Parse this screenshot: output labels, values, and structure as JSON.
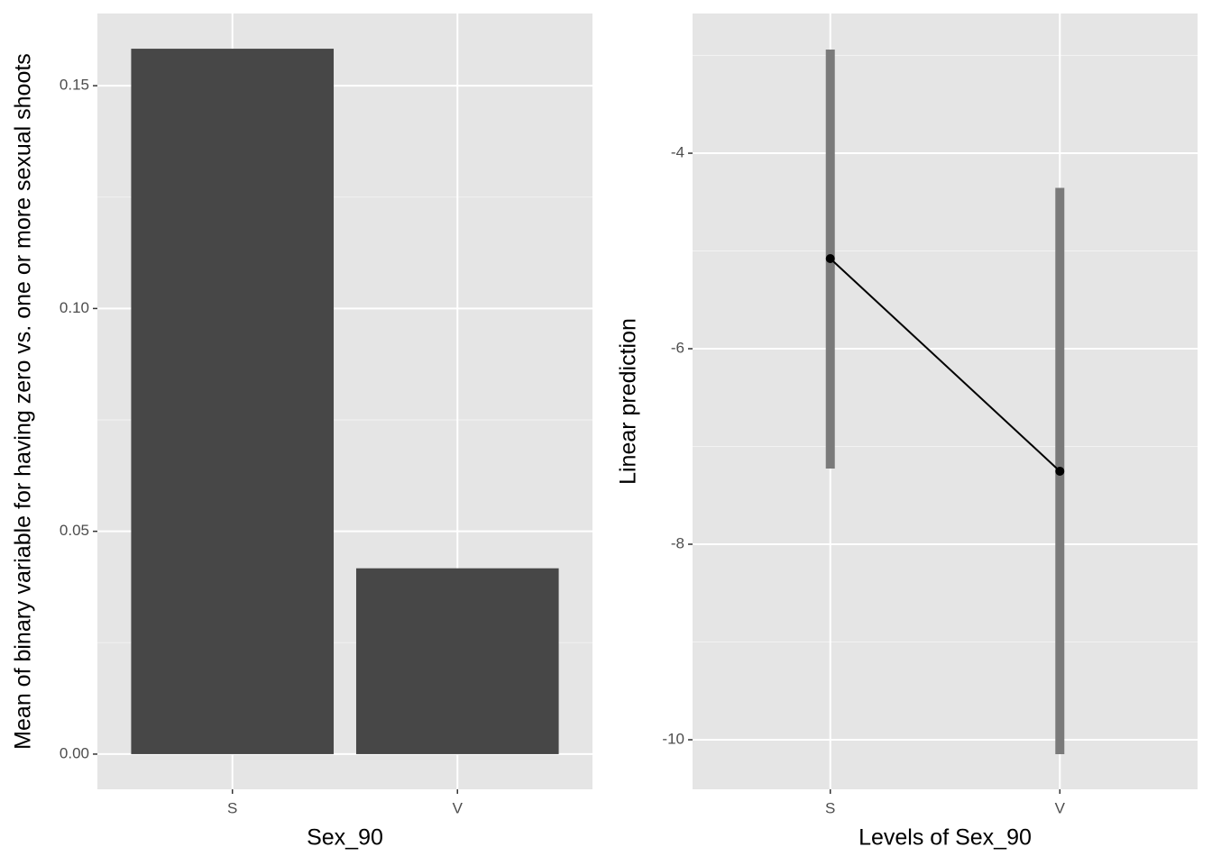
{
  "chart_data": [
    {
      "type": "bar",
      "x_label": "Sex_90",
      "y_label": "Mean of binary variable for having zero vs. one or more sexual shoots",
      "categories": [
        "S",
        "V"
      ],
      "values": [
        0.1583,
        0.0417
      ],
      "color": "#474747",
      "ylim": [
        -0.0079,
        0.1662
      ],
      "yticks": [
        {
          "value": 0,
          "label": "0.00"
        },
        {
          "value": 0.05,
          "label": "0.05"
        },
        {
          "value": 0.1,
          "label": "0.10"
        },
        {
          "value": 0.15,
          "label": "0.15"
        }
      ],
      "grid": true
    },
    {
      "type": "pointrange",
      "x_label": "Levels of Sex_90",
      "y_label": "Linear prediction",
      "categories": [
        "S",
        "V"
      ],
      "values": [
        -5.078,
        -7.253
      ],
      "lower": [
        -7.226,
        -10.147
      ],
      "upper": [
        -2.94,
        -4.355
      ],
      "color": "#000000",
      "range_color": "#7a7a7a",
      "ylim": [
        -10.507,
        -2.571
      ],
      "yticks": [
        -10,
        -8,
        -6,
        -4
      ],
      "grid": true
    }
  ]
}
